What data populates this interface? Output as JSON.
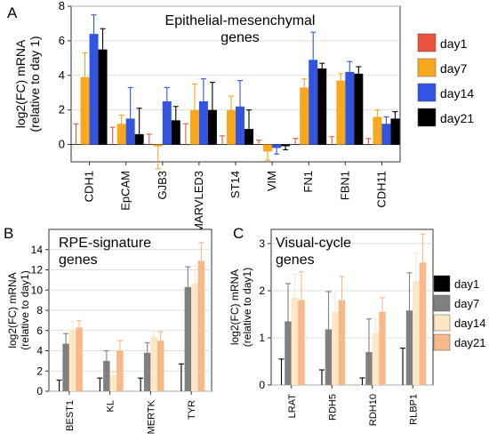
{
  "chart_data": [
    {
      "panel": "A",
      "type": "bar",
      "title": "Epithelial-mesenchymal genes",
      "ylabel": "log2(FC) mRNA (relative to day 1)",
      "ylim": [
        -1,
        8
      ],
      "yticks": [
        0,
        2,
        4,
        6,
        8
      ],
      "categories": [
        "CDH1",
        "EpCAM",
        "GJB3",
        "MARVLED3",
        "ST14",
        "VIM",
        "FN1",
        "FBN1",
        "CDH11"
      ],
      "legend": "right",
      "series": [
        {
          "name": "day1",
          "color": "#e8553a",
          "values": [
            0,
            0,
            0,
            0,
            0,
            0,
            0,
            0,
            0
          ],
          "errors": [
            1.2,
            1.0,
            0.6,
            1.2,
            0.5,
            0.25,
            0.35,
            0.45,
            0.35
          ]
        },
        {
          "name": "day7",
          "color": "#f8a81c",
          "values": [
            3.9,
            1.2,
            -0.1,
            2.0,
            2.0,
            -0.4,
            3.3,
            3.7,
            1.6
          ],
          "errors": [
            1.4,
            0.5,
            1.3,
            1.5,
            0.8,
            0.5,
            0.5,
            0.4,
            0.4
          ]
        },
        {
          "name": "day14",
          "color": "#3155e0",
          "values": [
            6.4,
            1.5,
            2.5,
            2.5,
            2.2,
            -0.2,
            4.9,
            4.2,
            1.2
          ],
          "errors": [
            1.1,
            1.8,
            0.8,
            1.3,
            1.5,
            0.35,
            1.6,
            0.6,
            0.4
          ]
        },
        {
          "name": "day21",
          "color": "#000000",
          "values": [
            5.5,
            0.6,
            1.4,
            2.0,
            0.9,
            -0.1,
            4.4,
            4.1,
            1.5
          ],
          "errors": [
            1.2,
            1.5,
            0.8,
            1.6,
            1.1,
            0.2,
            0.3,
            0.4,
            0.4
          ]
        }
      ]
    },
    {
      "panel": "B",
      "type": "bar",
      "title": "RPE-signature genes",
      "ylabel": "log2(FC) mRNA (relative to day1)",
      "ylim": [
        0,
        16
      ],
      "yticks": [
        0,
        2,
        4,
        6,
        8,
        10,
        12,
        14
      ],
      "categories": [
        "BEST1",
        "KL",
        "MERTK",
        "TYR"
      ],
      "series": [
        {
          "name": "day1",
          "color": "#000000",
          "values": [
            0,
            0,
            0,
            0
          ],
          "errors": [
            1.1,
            1.3,
            1.3,
            2.7
          ]
        },
        {
          "name": "day7",
          "color": "#808080",
          "values": [
            4.7,
            3.0,
            3.8,
            10.3
          ],
          "errors": [
            1.0,
            1.0,
            1.0,
            2.0
          ]
        },
        {
          "name": "day14",
          "color": "#fde7c7",
          "values": [
            6.1,
            1.6,
            5.4,
            10.7
          ],
          "errors": [
            0.8,
            0.3,
            0.6,
            1.7
          ]
        },
        {
          "name": "day21",
          "color": "#f9b888",
          "values": [
            6.3,
            4.0,
            5.0,
            12.9
          ],
          "errors": [
            0.7,
            1.0,
            0.9,
            1.8
          ]
        }
      ]
    },
    {
      "panel": "C",
      "type": "bar",
      "title": "Visual-cycle genes",
      "ylabel": "log2(FC) mRNA (relative to day1)",
      "ylim": [
        0,
        3.3
      ],
      "yticks": [
        0,
        1,
        2,
        3
      ],
      "categories": [
        "LRAT",
        "RDH5",
        "RDH10",
        "RLBP1"
      ],
      "legend": "right",
      "series": [
        {
          "name": "day1",
          "color": "#000000",
          "values": [
            0,
            0,
            0,
            0
          ],
          "errors": [
            0.55,
            0.32,
            0.15,
            0.78
          ]
        },
        {
          "name": "day7",
          "color": "#808080",
          "values": [
            1.35,
            1.18,
            0.7,
            1.58
          ],
          "errors": [
            0.8,
            0.8,
            0.7,
            0.8
          ]
        },
        {
          "name": "day14",
          "color": "#fde7c7",
          "values": [
            1.85,
            1.55,
            1.1,
            2.2
          ],
          "errors": [
            0.5,
            0.45,
            0.3,
            0.6
          ]
        },
        {
          "name": "day21",
          "color": "#f9b888",
          "values": [
            1.8,
            1.8,
            1.55,
            2.6
          ],
          "errors": [
            0.6,
            0.5,
            0.3,
            0.6
          ]
        }
      ]
    }
  ],
  "panel_letters": [
    "A",
    "B",
    "C"
  ]
}
